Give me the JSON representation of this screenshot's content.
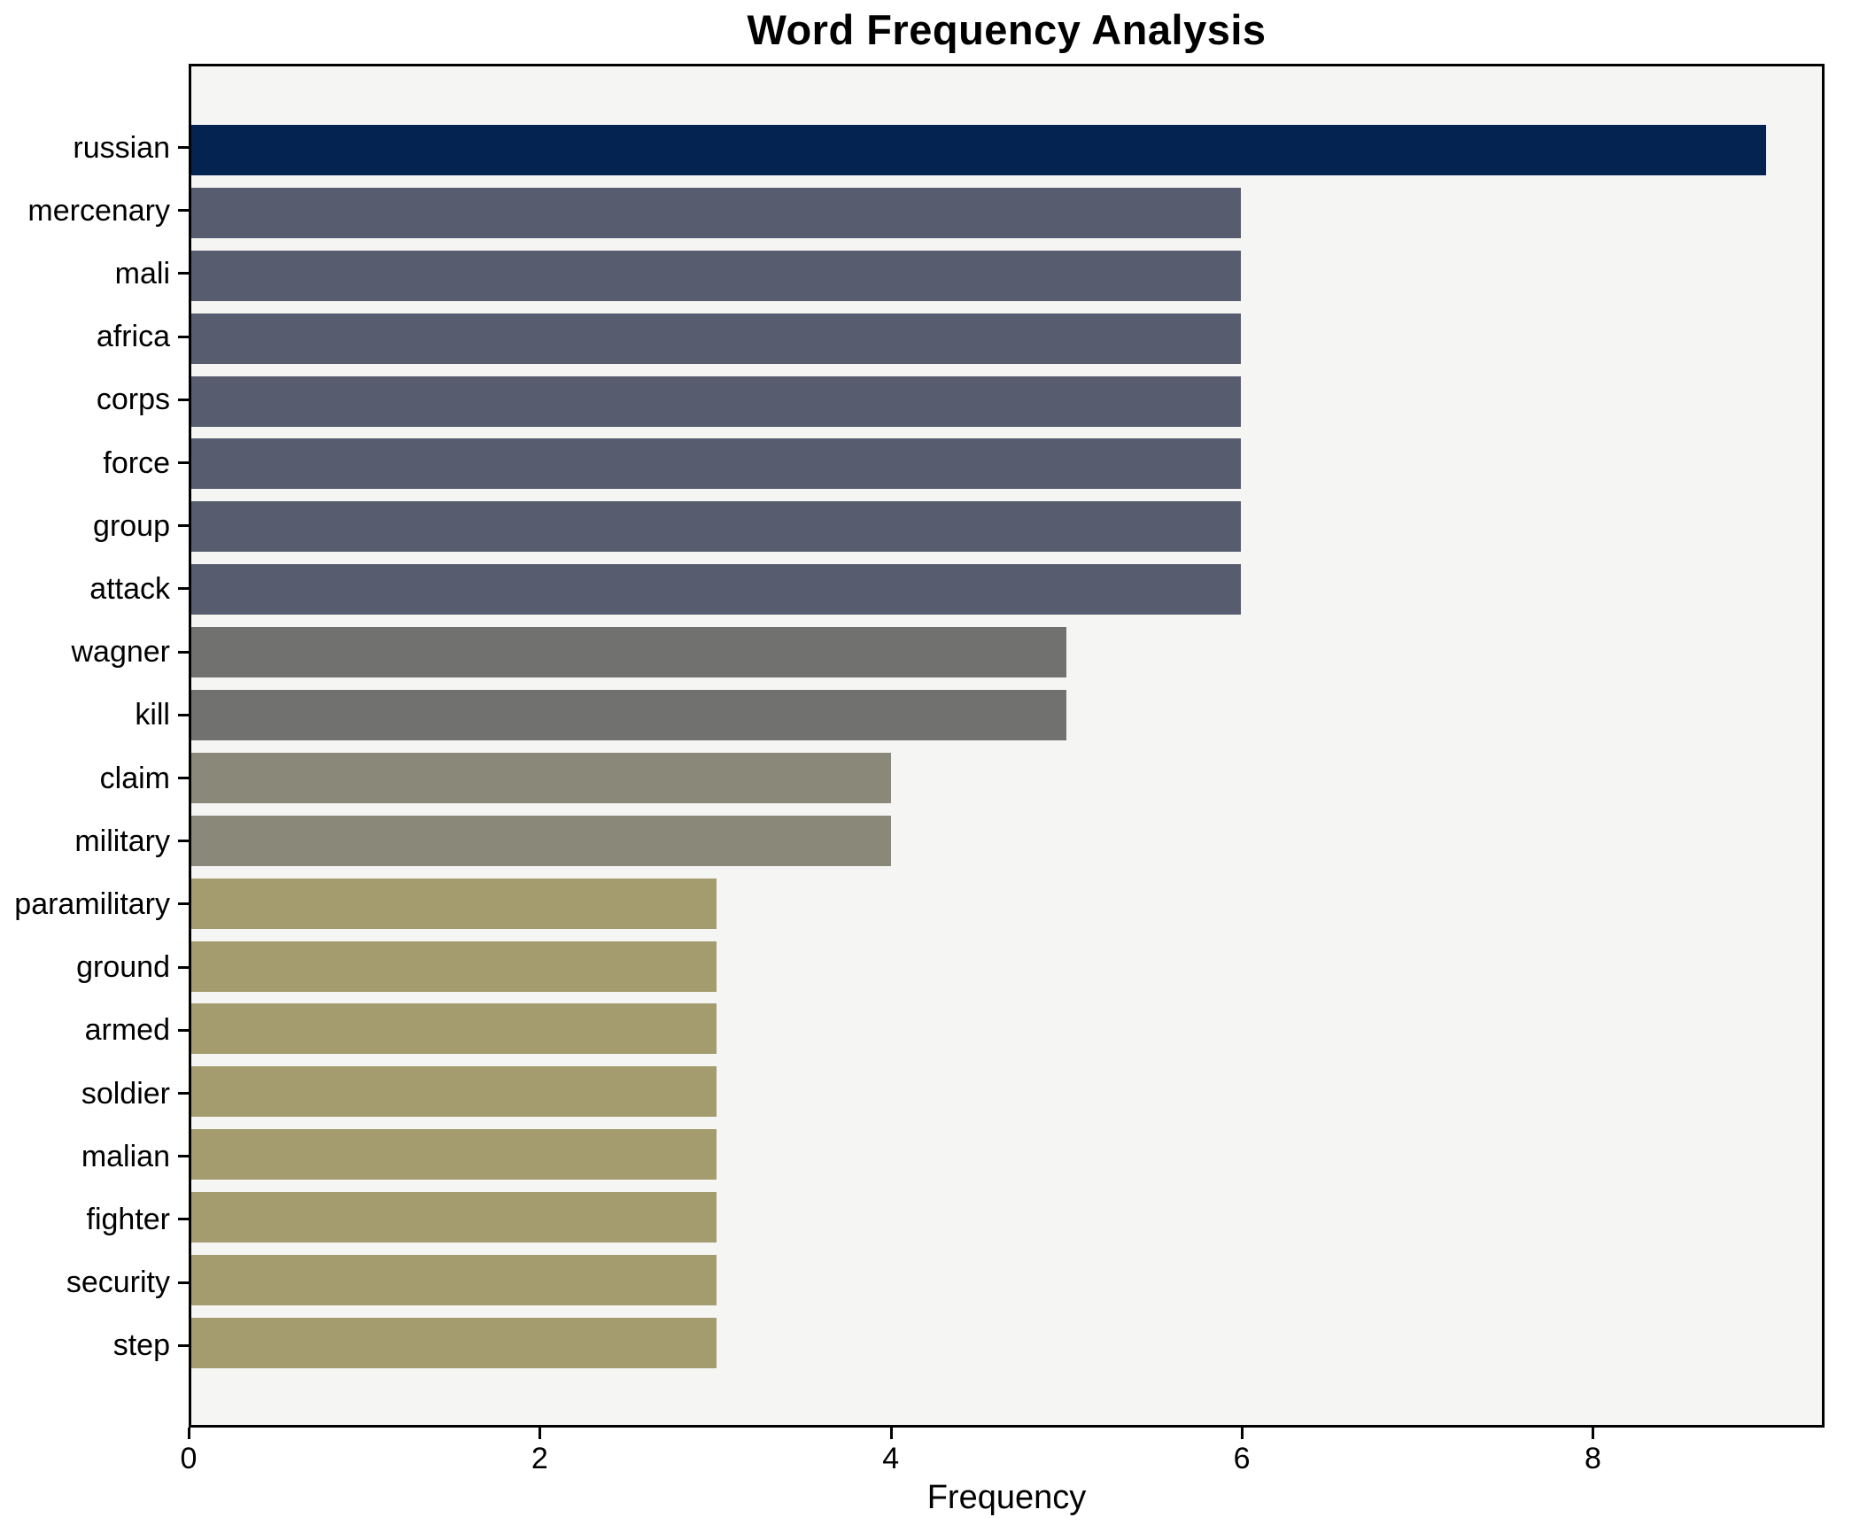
{
  "chart_data": {
    "type": "bar",
    "orientation": "horizontal",
    "title": "Word Frequency Analysis",
    "xlabel": "Frequency",
    "ylabel": "",
    "categories": [
      "russian",
      "mercenary",
      "mali",
      "africa",
      "corps",
      "force",
      "group",
      "attack",
      "wagner",
      "kill",
      "claim",
      "military",
      "paramilitary",
      "ground",
      "armed",
      "soldier",
      "malian",
      "fighter",
      "security",
      "step"
    ],
    "values": [
      9,
      6,
      6,
      6,
      6,
      6,
      6,
      6,
      5,
      5,
      4,
      4,
      3,
      3,
      3,
      3,
      3,
      3,
      3,
      3
    ],
    "bar_colors": [
      "#052350",
      "#575d6e",
      "#575d6e",
      "#575d6e",
      "#575d6e",
      "#575d6e",
      "#575d6e",
      "#575d6e",
      "#717170",
      "#717170",
      "#8a8878",
      "#8a8878",
      "#a49b6e",
      "#a49b6e",
      "#a49b6e",
      "#a49b6e",
      "#a49b6e",
      "#a49b6e",
      "#a49b6e",
      "#a49b6e"
    ],
    "xlim": [
      0,
      9.32
    ],
    "xticks": [
      0,
      2,
      4,
      6,
      8
    ],
    "grid": false,
    "legend_position": "none",
    "plot_background": "#f5f5f4",
    "axis_color": "#000000"
  }
}
